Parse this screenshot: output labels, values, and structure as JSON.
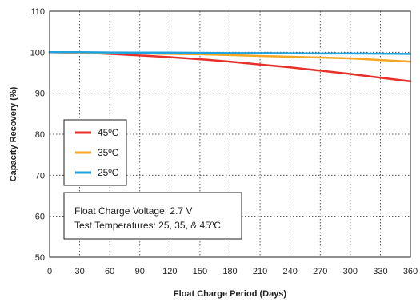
{
  "chart_data": {
    "type": "line",
    "xlabel": "Float Charge Period (Days)",
    "ylabel": "Capacity Recovery (%)",
    "xlim": [
      0,
      360
    ],
    "ylim": [
      50,
      110
    ],
    "xticks": [
      0,
      30,
      60,
      90,
      120,
      150,
      180,
      210,
      240,
      270,
      300,
      330,
      360
    ],
    "yticks": [
      50,
      60,
      70,
      80,
      90,
      100,
      110
    ],
    "grid": "dotted",
    "legend_placement": "center-left",
    "series": [
      {
        "name": "45ºC",
        "color": "#e8302a",
        "x": [
          0,
          30,
          60,
          90,
          120,
          150,
          180,
          210,
          240,
          270,
          300,
          330,
          360
        ],
        "y": [
          100,
          99.9,
          99.6,
          99.2,
          98.8,
          98.3,
          97.7,
          97.0,
          96.3,
          95.5,
          94.7,
          93.8,
          92.9
        ]
      },
      {
        "name": "35ºC",
        "color": "#f5a623",
        "x": [
          0,
          30,
          60,
          90,
          120,
          150,
          180,
          210,
          240,
          270,
          300,
          330,
          360
        ],
        "y": [
          100,
          99.9,
          99.8,
          99.7,
          99.6,
          99.5,
          99.3,
          99.1,
          98.9,
          98.7,
          98.5,
          98.1,
          97.7
        ]
      },
      {
        "name": "25ºC",
        "color": "#1fa3e0",
        "x": [
          0,
          30,
          60,
          90,
          120,
          150,
          180,
          210,
          240,
          270,
          300,
          330,
          360
        ],
        "y": [
          100,
          100,
          99.95,
          99.9,
          99.9,
          99.85,
          99.8,
          99.8,
          99.75,
          99.7,
          99.7,
          99.65,
          99.6
        ]
      }
    ],
    "annotation": {
      "lines": [
        "Float Charge Voltage: 2.7 V",
        "Test Temperatures: 25, 35, & 45ºC"
      ]
    }
  }
}
